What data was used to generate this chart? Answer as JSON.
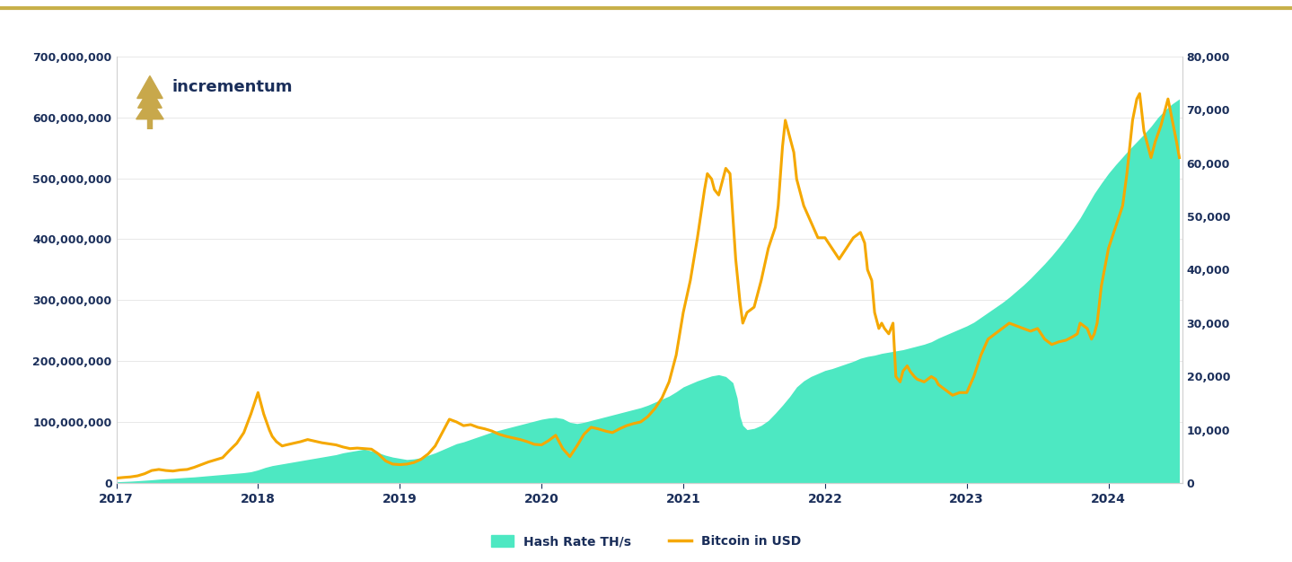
{
  "bg_color": "#ffffff",
  "border_color": "#c8b04a",
  "fill_color": "#4de8c2",
  "line_color": "#f5a800",
  "lhs_label": "Hash Rate TH/s",
  "rhs_label": "Bitcoin in USD",
  "lhs_ylim": [
    0,
    700000000
  ],
  "rhs_ylim": [
    0,
    80000
  ],
  "lhs_yticks": [
    0,
    100000000,
    200000000,
    300000000,
    400000000,
    500000000,
    600000000,
    700000000
  ],
  "rhs_yticks": [
    0,
    10000,
    20000,
    30000,
    40000,
    50000,
    60000,
    70000,
    80000
  ],
  "text_color": "#1a2e5a",
  "logo_text": "incrementum",
  "tree_color": "#c8a84b",
  "hash_rate_data": [
    [
      2017.0,
      2500000
    ],
    [
      2017.05,
      3000000
    ],
    [
      2017.1,
      3500000
    ],
    [
      2017.15,
      4200000
    ],
    [
      2017.2,
      5000000
    ],
    [
      2017.25,
      5800000
    ],
    [
      2017.3,
      6800000
    ],
    [
      2017.35,
      7500000
    ],
    [
      2017.4,
      8200000
    ],
    [
      2017.45,
      9000000
    ],
    [
      2017.5,
      9800000
    ],
    [
      2017.55,
      10500000
    ],
    [
      2017.6,
      11500000
    ],
    [
      2017.65,
      12500000
    ],
    [
      2017.7,
      13500000
    ],
    [
      2017.75,
      14500000
    ],
    [
      2017.8,
      15500000
    ],
    [
      2017.85,
      16500000
    ],
    [
      2017.9,
      17500000
    ],
    [
      2017.95,
      19000000
    ],
    [
      2018.0,
      22000000
    ],
    [
      2018.05,
      26000000
    ],
    [
      2018.1,
      29000000
    ],
    [
      2018.15,
      31000000
    ],
    [
      2018.2,
      33000000
    ],
    [
      2018.25,
      35000000
    ],
    [
      2018.3,
      37000000
    ],
    [
      2018.35,
      39000000
    ],
    [
      2018.4,
      41000000
    ],
    [
      2018.45,
      43000000
    ],
    [
      2018.5,
      45000000
    ],
    [
      2018.55,
      47000000
    ],
    [
      2018.6,
      50000000
    ],
    [
      2018.65,
      52000000
    ],
    [
      2018.7,
      54000000
    ],
    [
      2018.75,
      56000000
    ],
    [
      2018.8,
      53000000
    ],
    [
      2018.85,
      50000000
    ],
    [
      2018.9,
      46000000
    ],
    [
      2018.95,
      43000000
    ],
    [
      2019.0,
      41000000
    ],
    [
      2019.05,
      39000000
    ],
    [
      2019.1,
      40000000
    ],
    [
      2019.15,
      42000000
    ],
    [
      2019.2,
      46000000
    ],
    [
      2019.25,
      50000000
    ],
    [
      2019.3,
      55000000
    ],
    [
      2019.35,
      60000000
    ],
    [
      2019.4,
      65000000
    ],
    [
      2019.45,
      68000000
    ],
    [
      2019.5,
      72000000
    ],
    [
      2019.55,
      76000000
    ],
    [
      2019.6,
      80000000
    ],
    [
      2019.65,
      84000000
    ],
    [
      2019.7,
      87000000
    ],
    [
      2019.75,
      90000000
    ],
    [
      2019.8,
      93000000
    ],
    [
      2019.85,
      96000000
    ],
    [
      2019.9,
      99000000
    ],
    [
      2019.95,
      102000000
    ],
    [
      2020.0,
      105000000
    ],
    [
      2020.05,
      107000000
    ],
    [
      2020.1,
      108000000
    ],
    [
      2020.15,
      106000000
    ],
    [
      2020.2,
      100000000
    ],
    [
      2020.25,
      98000000
    ],
    [
      2020.3,
      100000000
    ],
    [
      2020.35,
      103000000
    ],
    [
      2020.4,
      106000000
    ],
    [
      2020.45,
      109000000
    ],
    [
      2020.5,
      112000000
    ],
    [
      2020.55,
      115000000
    ],
    [
      2020.6,
      118000000
    ],
    [
      2020.65,
      121000000
    ],
    [
      2020.7,
      124000000
    ],
    [
      2020.75,
      128000000
    ],
    [
      2020.8,
      133000000
    ],
    [
      2020.85,
      138000000
    ],
    [
      2020.9,
      143000000
    ],
    [
      2020.95,
      150000000
    ],
    [
      2021.0,
      158000000
    ],
    [
      2021.05,
      163000000
    ],
    [
      2021.1,
      168000000
    ],
    [
      2021.15,
      172000000
    ],
    [
      2021.2,
      176000000
    ],
    [
      2021.25,
      178000000
    ],
    [
      2021.3,
      175000000
    ],
    [
      2021.35,
      165000000
    ],
    [
      2021.38,
      140000000
    ],
    [
      2021.4,
      110000000
    ],
    [
      2021.42,
      95000000
    ],
    [
      2021.45,
      88000000
    ],
    [
      2021.5,
      90000000
    ],
    [
      2021.55,
      95000000
    ],
    [
      2021.6,
      103000000
    ],
    [
      2021.65,
      115000000
    ],
    [
      2021.7,
      128000000
    ],
    [
      2021.75,
      142000000
    ],
    [
      2021.8,
      158000000
    ],
    [
      2021.85,
      168000000
    ],
    [
      2021.9,
      175000000
    ],
    [
      2021.95,
      180000000
    ],
    [
      2022.0,
      185000000
    ],
    [
      2022.05,
      188000000
    ],
    [
      2022.1,
      192000000
    ],
    [
      2022.15,
      196000000
    ],
    [
      2022.2,
      200000000
    ],
    [
      2022.25,
      205000000
    ],
    [
      2022.3,
      208000000
    ],
    [
      2022.35,
      210000000
    ],
    [
      2022.4,
      213000000
    ],
    [
      2022.45,
      215000000
    ],
    [
      2022.5,
      217000000
    ],
    [
      2022.55,
      219000000
    ],
    [
      2022.6,
      222000000
    ],
    [
      2022.65,
      225000000
    ],
    [
      2022.7,
      228000000
    ],
    [
      2022.75,
      232000000
    ],
    [
      2022.8,
      238000000
    ],
    [
      2022.85,
      243000000
    ],
    [
      2022.9,
      248000000
    ],
    [
      2022.95,
      253000000
    ],
    [
      2023.0,
      258000000
    ],
    [
      2023.05,
      264000000
    ],
    [
      2023.1,
      272000000
    ],
    [
      2023.15,
      280000000
    ],
    [
      2023.2,
      288000000
    ],
    [
      2023.25,
      296000000
    ],
    [
      2023.3,
      305000000
    ],
    [
      2023.35,
      315000000
    ],
    [
      2023.4,
      325000000
    ],
    [
      2023.45,
      336000000
    ],
    [
      2023.5,
      348000000
    ],
    [
      2023.55,
      360000000
    ],
    [
      2023.6,
      373000000
    ],
    [
      2023.65,
      387000000
    ],
    [
      2023.7,
      402000000
    ],
    [
      2023.75,
      418000000
    ],
    [
      2023.8,
      435000000
    ],
    [
      2023.85,
      455000000
    ],
    [
      2023.9,
      475000000
    ],
    [
      2023.95,
      492000000
    ],
    [
      2024.0,
      508000000
    ],
    [
      2024.05,
      522000000
    ],
    [
      2024.1,
      535000000
    ],
    [
      2024.15,
      548000000
    ],
    [
      2024.2,
      560000000
    ],
    [
      2024.25,
      572000000
    ],
    [
      2024.3,
      585000000
    ],
    [
      2024.35,
      600000000
    ],
    [
      2024.4,
      612000000
    ],
    [
      2024.45,
      622000000
    ],
    [
      2024.5,
      630000000
    ]
  ],
  "btc_price_data": [
    [
      2017.0,
      970
    ],
    [
      2017.05,
      1100
    ],
    [
      2017.1,
      1200
    ],
    [
      2017.15,
      1400
    ],
    [
      2017.2,
      1800
    ],
    [
      2017.25,
      2400
    ],
    [
      2017.3,
      2600
    ],
    [
      2017.35,
      2400
    ],
    [
      2017.4,
      2300
    ],
    [
      2017.45,
      2500
    ],
    [
      2017.5,
      2600
    ],
    [
      2017.55,
      3000
    ],
    [
      2017.6,
      3500
    ],
    [
      2017.65,
      4000
    ],
    [
      2017.7,
      4400
    ],
    [
      2017.75,
      4800
    ],
    [
      2017.8,
      6200
    ],
    [
      2017.85,
      7500
    ],
    [
      2017.9,
      9500
    ],
    [
      2017.95,
      13000
    ],
    [
      2018.0,
      17000
    ],
    [
      2018.02,
      15000
    ],
    [
      2018.04,
      13000
    ],
    [
      2018.06,
      11500
    ],
    [
      2018.08,
      10000
    ],
    [
      2018.1,
      8800
    ],
    [
      2018.13,
      7800
    ],
    [
      2018.17,
      7000
    ],
    [
      2018.2,
      7200
    ],
    [
      2018.25,
      7500
    ],
    [
      2018.3,
      7800
    ],
    [
      2018.35,
      8200
    ],
    [
      2018.4,
      7900
    ],
    [
      2018.45,
      7600
    ],
    [
      2018.5,
      7400
    ],
    [
      2018.55,
      7200
    ],
    [
      2018.6,
      6800
    ],
    [
      2018.65,
      6500
    ],
    [
      2018.7,
      6600
    ],
    [
      2018.75,
      6500
    ],
    [
      2018.8,
      6400
    ],
    [
      2018.85,
      5500
    ],
    [
      2018.9,
      4200
    ],
    [
      2018.95,
      3600
    ],
    [
      2019.0,
      3500
    ],
    [
      2019.05,
      3600
    ],
    [
      2019.1,
      3900
    ],
    [
      2019.15,
      4500
    ],
    [
      2019.2,
      5500
    ],
    [
      2019.25,
      7000
    ],
    [
      2019.3,
      9500
    ],
    [
      2019.35,
      12000
    ],
    [
      2019.4,
      11500
    ],
    [
      2019.45,
      10800
    ],
    [
      2019.5,
      11000
    ],
    [
      2019.55,
      10500
    ],
    [
      2019.6,
      10200
    ],
    [
      2019.65,
      9800
    ],
    [
      2019.7,
      9200
    ],
    [
      2019.75,
      8800
    ],
    [
      2019.8,
      8500
    ],
    [
      2019.85,
      8200
    ],
    [
      2019.9,
      7800
    ],
    [
      2019.95,
      7300
    ],
    [
      2020.0,
      7200
    ],
    [
      2020.05,
      8000
    ],
    [
      2020.1,
      9000
    ],
    [
      2020.15,
      6500
    ],
    [
      2020.2,
      5000
    ],
    [
      2020.25,
      7000
    ],
    [
      2020.3,
      9200
    ],
    [
      2020.35,
      10500
    ],
    [
      2020.4,
      10200
    ],
    [
      2020.45,
      9800
    ],
    [
      2020.5,
      9500
    ],
    [
      2020.55,
      10200
    ],
    [
      2020.6,
      10800
    ],
    [
      2020.65,
      11200
    ],
    [
      2020.7,
      11500
    ],
    [
      2020.75,
      12500
    ],
    [
      2020.8,
      14000
    ],
    [
      2020.85,
      16000
    ],
    [
      2020.9,
      19000
    ],
    [
      2020.95,
      24000
    ],
    [
      2021.0,
      32000
    ],
    [
      2021.05,
      38000
    ],
    [
      2021.1,
      46000
    ],
    [
      2021.15,
      55000
    ],
    [
      2021.17,
      58000
    ],
    [
      2021.2,
      57000
    ],
    [
      2021.22,
      55000
    ],
    [
      2021.25,
      54000
    ],
    [
      2021.28,
      57000
    ],
    [
      2021.3,
      59000
    ],
    [
      2021.33,
      58000
    ],
    [
      2021.35,
      50000
    ],
    [
      2021.37,
      42000
    ],
    [
      2021.4,
      34000
    ],
    [
      2021.42,
      30000
    ],
    [
      2021.45,
      32000
    ],
    [
      2021.5,
      33000
    ],
    [
      2021.55,
      38000
    ],
    [
      2021.6,
      44000
    ],
    [
      2021.65,
      48000
    ],
    [
      2021.67,
      52000
    ],
    [
      2021.7,
      63000
    ],
    [
      2021.72,
      68000
    ],
    [
      2021.75,
      65000
    ],
    [
      2021.78,
      62000
    ],
    [
      2021.8,
      57000
    ],
    [
      2021.85,
      52000
    ],
    [
      2021.9,
      49000
    ],
    [
      2021.95,
      46000
    ],
    [
      2022.0,
      46000
    ],
    [
      2022.05,
      44000
    ],
    [
      2022.1,
      42000
    ],
    [
      2022.15,
      44000
    ],
    [
      2022.2,
      46000
    ],
    [
      2022.25,
      47000
    ],
    [
      2022.28,
      45000
    ],
    [
      2022.3,
      40000
    ],
    [
      2022.33,
      38000
    ],
    [
      2022.35,
      32000
    ],
    [
      2022.38,
      29000
    ],
    [
      2022.4,
      30000
    ],
    [
      2022.42,
      29000
    ],
    [
      2022.45,
      28000
    ],
    [
      2022.48,
      30000
    ],
    [
      2022.5,
      20000
    ],
    [
      2022.53,
      19000
    ],
    [
      2022.55,
      21000
    ],
    [
      2022.58,
      22000
    ],
    [
      2022.6,
      21000
    ],
    [
      2022.63,
      20000
    ],
    [
      2022.65,
      19500
    ],
    [
      2022.7,
      19000
    ],
    [
      2022.75,
      20000
    ],
    [
      2022.78,
      19500
    ],
    [
      2022.8,
      18500
    ],
    [
      2022.85,
      17500
    ],
    [
      2022.9,
      16500
    ],
    [
      2022.95,
      17000
    ],
    [
      2023.0,
      17000
    ],
    [
      2023.05,
      20000
    ],
    [
      2023.1,
      24000
    ],
    [
      2023.15,
      27000
    ],
    [
      2023.2,
      28000
    ],
    [
      2023.25,
      29000
    ],
    [
      2023.3,
      30000
    ],
    [
      2023.35,
      29500
    ],
    [
      2023.4,
      29000
    ],
    [
      2023.45,
      28500
    ],
    [
      2023.5,
      29000
    ],
    [
      2023.55,
      27000
    ],
    [
      2023.6,
      26000
    ],
    [
      2023.65,
      26500
    ],
    [
      2023.7,
      26800
    ],
    [
      2023.75,
      27500
    ],
    [
      2023.78,
      28000
    ],
    [
      2023.8,
      30000
    ],
    [
      2023.85,
      29000
    ],
    [
      2023.88,
      27000
    ],
    [
      2023.9,
      28000
    ],
    [
      2023.92,
      30000
    ],
    [
      2023.95,
      37000
    ],
    [
      2024.0,
      44000
    ],
    [
      2024.05,
      48000
    ],
    [
      2024.1,
      52000
    ],
    [
      2024.13,
      58000
    ],
    [
      2024.17,
      68000
    ],
    [
      2024.2,
      72000
    ],
    [
      2024.22,
      73000
    ],
    [
      2024.25,
      66000
    ],
    [
      2024.28,
      63000
    ],
    [
      2024.3,
      61000
    ],
    [
      2024.33,
      64000
    ],
    [
      2024.37,
      67000
    ],
    [
      2024.4,
      70000
    ],
    [
      2024.42,
      72000
    ],
    [
      2024.45,
      68000
    ],
    [
      2024.48,
      64000
    ],
    [
      2024.5,
      61000
    ]
  ]
}
